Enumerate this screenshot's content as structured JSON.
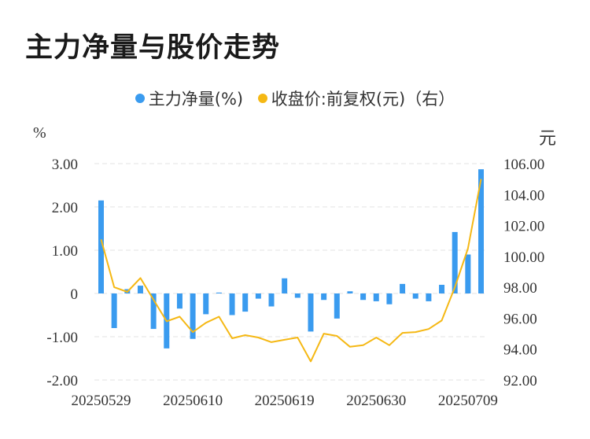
{
  "title": "主力净量与股价走势",
  "legend": {
    "series1": "主力净量(%)",
    "series2": "收盘价:前复权(元)（右）"
  },
  "units": {
    "left": "%",
    "right": "元"
  },
  "colors": {
    "bar": "#3a9bef",
    "line": "#f5b814",
    "grid": "#e3e3e3"
  },
  "chart_data": {
    "type": "bar",
    "title": "主力净量与股价走势",
    "x_tick_labels": [
      "20250529",
      "20250610",
      "20250619",
      "20250630",
      "20250709"
    ],
    "left_axis": {
      "unit": "%",
      "ylim": [
        -2,
        3
      ],
      "ticks": [
        "3.00",
        "2.00",
        "1.00",
        "0",
        "-1.00",
        "-2.00"
      ]
    },
    "right_axis": {
      "unit": "元",
      "ylim": [
        92,
        106
      ],
      "ticks": [
        "106.00",
        "104.00",
        "102.00",
        "100.00",
        "98.00",
        "96.00",
        "94.00",
        "92.00"
      ]
    },
    "grid": true,
    "legend_position": "top",
    "series": [
      {
        "name": "主力净量(%)",
        "type": "bar",
        "axis": "left",
        "values": [
          2.15,
          -0.8,
          0.1,
          0.18,
          -0.82,
          -1.27,
          -0.35,
          -1.05,
          -0.48,
          0.02,
          -0.5,
          -0.42,
          -0.12,
          -0.3,
          0.35,
          -0.1,
          -0.88,
          -0.15,
          -0.58,
          0.05,
          -0.15,
          -0.18,
          -0.25,
          0.22,
          -0.12,
          -0.18,
          0.2,
          1.42,
          0.9,
          2.87
        ]
      },
      {
        "name": "收盘价:前复权(元)（右）",
        "type": "line",
        "axis": "right",
        "values": [
          101.1,
          98.0,
          97.7,
          98.6,
          97.2,
          95.8,
          96.1,
          95.1,
          95.7,
          96.1,
          94.7,
          94.9,
          94.75,
          94.45,
          94.6,
          94.75,
          93.2,
          95.0,
          94.85,
          94.15,
          94.25,
          94.75,
          94.25,
          95.05,
          95.1,
          95.3,
          95.85,
          98.0,
          100.5,
          105.0
        ]
      }
    ]
  }
}
